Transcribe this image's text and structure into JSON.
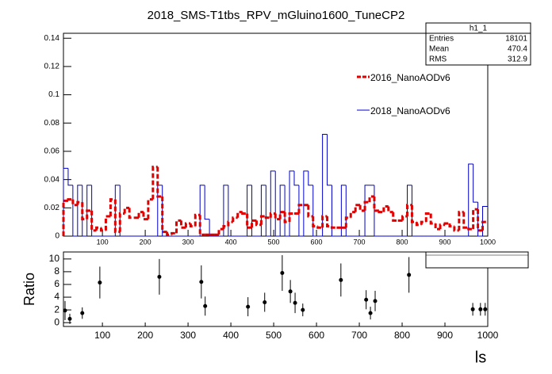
{
  "chart_data": [
    {
      "type": "histogram",
      "title": "2018_SMS-T1tbs_RPV_mGluino1600_TuneCP2",
      "bins": [
        9,
        20,
        31,
        42,
        53,
        64,
        75,
        86,
        97,
        108,
        119,
        130,
        141,
        152,
        163,
        174,
        185,
        196,
        207,
        218,
        229,
        240,
        251,
        262,
        273,
        284,
        295,
        306,
        317,
        328,
        339,
        350,
        361,
        372,
        383,
        394,
        405,
        416,
        427,
        438,
        449,
        460,
        471,
        482,
        493,
        504,
        515,
        526,
        537,
        548,
        559,
        570,
        581,
        592,
        603,
        614,
        625,
        636,
        647,
        658,
        669,
        680,
        691,
        702,
        713,
        724,
        735,
        746,
        757,
        768,
        779,
        790,
        801,
        812,
        823,
        834,
        845,
        856,
        867,
        878,
        889,
        900,
        911,
        922,
        933,
        944,
        955,
        966,
        977,
        988,
        999
      ],
      "series": [
        {
          "name": "2016_NanoAODv6",
          "color": "#e00000",
          "style": "dashed",
          "values": [
            0.025,
            0.026,
            0.022,
            0.024,
            0.012,
            0.018,
            0.004,
            0.006,
            0.004,
            0.014,
            0.026,
            0.003,
            0.016,
            0.02,
            0.013,
            0.013,
            0.017,
            0.012,
            0.026,
            0.049,
            0.028,
            0.003,
            0.001,
            0.002,
            0.011,
            0.006,
            0.009,
            0.007,
            0.015,
            0.001,
            0.001,
            0.001,
            0.001,
            0.005,
            0.007,
            0.01,
            0.013,
            0.017,
            0.016,
            0.006,
            0.011,
            0.008,
            0.014,
            0.013,
            0.016,
            0.012,
            0.017,
            0.01,
            0.016,
            0.016,
            0.022,
            0.022,
            0.014,
            0.007,
            0.006,
            0.014,
            0.007,
            0.006,
            0.006,
            0.006,
            0.013,
            0.017,
            0.022,
            0.018,
            0.024,
            0.028,
            0.018,
            0.017,
            0.021,
            0.017,
            0.011,
            0.011,
            0.014,
            0.022,
            0.01,
            0.008,
            0.01,
            0.016,
            0.009,
            0.005,
            0.008,
            0.009,
            0.007,
            0.004,
            0.017,
            0.006,
            0.005,
            0.019,
            0.004,
            0.01
          ]
        },
        {
          "name": "2018_NanoAODv6",
          "color": "#0000cc",
          "style": "solid",
          "values": [
            0.048,
            0.036,
            0,
            0.036,
            0,
            0.036,
            0,
            0,
            0,
            0,
            0,
            0.036,
            0,
            0,
            0,
            0,
            0,
            0,
            0,
            0,
            0.036,
            0,
            0,
            0,
            0,
            0,
            0,
            0,
            0,
            0.036,
            0.012,
            0,
            0,
            0,
            0.036,
            0,
            0,
            0,
            0,
            0.036,
            0,
            0,
            0.036,
            0,
            0.046,
            0,
            0.036,
            0,
            0.046,
            0.036,
            0,
            0.046,
            0.036,
            0,
            0,
            0.072,
            0.036,
            0,
            0,
            0.036,
            0,
            0,
            0,
            0,
            0.036,
            0.036,
            0,
            0,
            0,
            0,
            0,
            0,
            0,
            0.036,
            0,
            0,
            0,
            0,
            0,
            0,
            0,
            0,
            0,
            0,
            0,
            0,
            0.051,
            0.024,
            0,
            0.021
          ]
        }
      ],
      "xlim": [
        9,
        1000
      ],
      "ylim": [
        0,
        0.1435
      ],
      "xticks": [
        100,
        200,
        300,
        400,
        500,
        600,
        700,
        800,
        900,
        1000
      ],
      "yticks": [
        0,
        0.02,
        0.04,
        0.06,
        0.08,
        0.1,
        0.12,
        0.14
      ],
      "stats": {
        "title": "h1_1",
        "rows": [
          [
            "Entries",
            18101
          ],
          [
            "Mean",
            470.4
          ],
          [
            "RMS",
            312.9
          ]
        ]
      }
    },
    {
      "type": "scatter",
      "xlabel": "ls",
      "ylabel": "Ratio",
      "x": [
        12.7,
        23.8,
        53,
        94,
        233,
        331,
        340,
        440,
        479,
        520,
        539,
        550,
        568,
        657,
        716,
        726,
        737,
        816,
        965,
        983,
        994
      ],
      "values": [
        1.9,
        0.6,
        1.5,
        6.3,
        7.2,
        6.4,
        2.6,
        2.5,
        3.2,
        7.8,
        4.9,
        3.1,
        2.0,
        6.7,
        3.6,
        1.5,
        3.4,
        7.5,
        2.1,
        2.1,
        2.1
      ],
      "errors": [
        1.5,
        0.8,
        0.9,
        2.5,
        2.8,
        2.6,
        1.5,
        1.5,
        1.5,
        2.8,
        1.8,
        1.6,
        1.0,
        2.6,
        1.5,
        1.0,
        1.6,
        2.8,
        1.0,
        1.0,
        1.0
      ],
      "color": "#000000",
      "xlim": [
        9,
        1000
      ],
      "ylim": [
        -0.6,
        11.1
      ],
      "xticks": [
        100,
        200,
        300,
        400,
        500,
        600,
        700,
        800,
        900,
        1000
      ],
      "yticks": [
        0,
        2,
        4,
        6,
        8,
        10
      ]
    }
  ]
}
